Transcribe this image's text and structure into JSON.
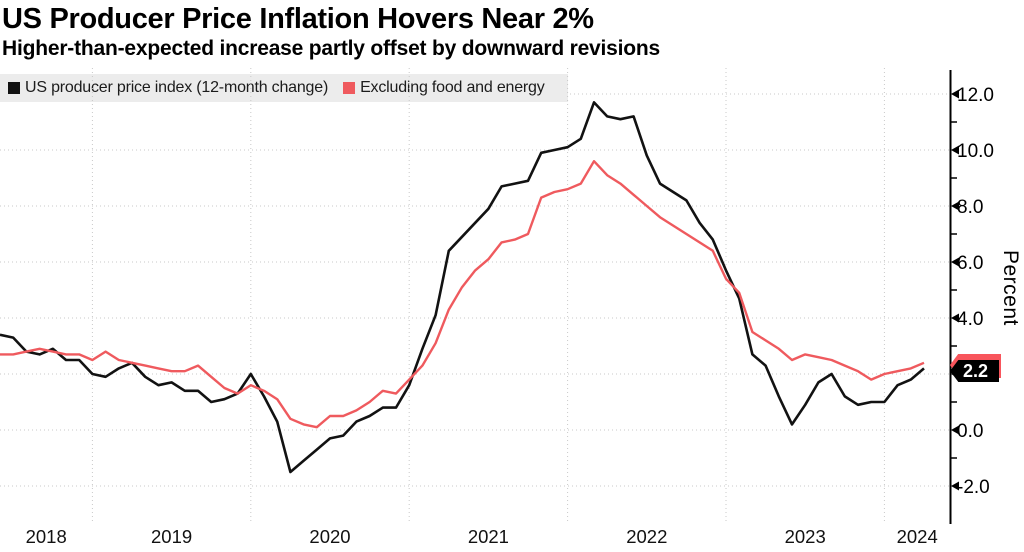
{
  "header": {
    "title": "US Producer Price Inflation Hovers Near 2%",
    "subtitle": "Higher-than-expected increase partly offset by downward revisions"
  },
  "legend": {
    "items": [
      {
        "label": "US producer price index (12-month change)",
        "color": "#121212"
      },
      {
        "label": "Excluding food and energy",
        "color": "#ef5a5e"
      }
    ]
  },
  "colors": {
    "background": "#ffffff",
    "legend_band": "#ececec",
    "gridline": "#c9c9c9",
    "axis": "#000000",
    "tag_black_bg": "#000000",
    "tag_black_fg": "#ffffff",
    "tag_red_bg": "#f8555c"
  },
  "chart_data": {
    "type": "line",
    "title": "US Producer Price Inflation Hovers Near 2%",
    "subtitle": "Higher-than-expected increase partly offset by downward revisions",
    "ylabel": "Percent",
    "xlabel": "",
    "x_unit": "month",
    "x_start": "2018-06",
    "x_end": "2024-04",
    "x_tick_labels": [
      "2018",
      "2019",
      "2020",
      "2021",
      "2022",
      "2023",
      "2024"
    ],
    "ylim": [
      -2.9,
      13.0
    ],
    "grid": "dotted",
    "legend_position": "top",
    "y_major_ticks": [
      -2,
      0,
      2,
      4,
      6,
      8,
      10,
      12
    ],
    "y_minor_ticks": [
      -1,
      1,
      3,
      5,
      7,
      9,
      11
    ],
    "y_tick_labels_visible": [
      "12.0",
      "10.0",
      "8.0",
      "6.0",
      "4.0",
      "0.0",
      "-2.0"
    ],
    "series": [
      {
        "name": "US producer price index (12-month change)",
        "color": "#121212",
        "values": [
          3.4,
          3.3,
          2.8,
          2.7,
          2.9,
          2.5,
          2.5,
          2.0,
          1.9,
          2.2,
          2.4,
          1.9,
          1.6,
          1.7,
          1.4,
          1.4,
          1.0,
          1.1,
          1.3,
          2.0,
          1.2,
          0.3,
          -1.5,
          -1.1,
          -0.7,
          -0.3,
          -0.2,
          0.3,
          0.5,
          0.8,
          0.8,
          1.6,
          2.9,
          4.1,
          6.4,
          6.9,
          7.4,
          7.9,
          8.7,
          8.8,
          8.9,
          9.9,
          10.0,
          10.1,
          10.4,
          11.7,
          11.2,
          11.1,
          11.2,
          9.8,
          8.8,
          8.5,
          8.2,
          7.4,
          6.8,
          5.7,
          4.7,
          2.7,
          2.3,
          1.2,
          0.2,
          0.9,
          1.7,
          2.0,
          1.2,
          0.9,
          1.0,
          1.0,
          1.6,
          1.8,
          2.2
        ]
      },
      {
        "name": "Excluding food and energy",
        "color": "#ef5a5e",
        "values": [
          2.7,
          2.7,
          2.8,
          2.9,
          2.8,
          2.7,
          2.7,
          2.5,
          2.8,
          2.5,
          2.4,
          2.3,
          2.2,
          2.1,
          2.1,
          2.3,
          1.9,
          1.5,
          1.3,
          1.6,
          1.4,
          1.1,
          0.4,
          0.2,
          0.1,
          0.5,
          0.5,
          0.7,
          1.0,
          1.4,
          1.3,
          1.8,
          2.3,
          3.1,
          4.3,
          5.1,
          5.7,
          6.1,
          6.7,
          6.8,
          7.0,
          8.3,
          8.5,
          8.6,
          8.8,
          9.6,
          9.1,
          8.8,
          8.4,
          8.0,
          7.6,
          7.3,
          7.0,
          6.7,
          6.4,
          5.4,
          4.9,
          3.5,
          3.2,
          2.9,
          2.5,
          2.7,
          2.6,
          2.5,
          2.3,
          2.1,
          1.8,
          2.0,
          2.1,
          2.2,
          2.4
        ]
      }
    ],
    "end_value_labels": [
      {
        "series_index": 0,
        "text": "2.2",
        "value": 2.2,
        "bg": "#000000",
        "fg": "#ffffff"
      },
      {
        "series_index": 1,
        "text": "",
        "value": 2.4,
        "bg": "#f8555c",
        "fg": "#ffffff"
      }
    ]
  }
}
